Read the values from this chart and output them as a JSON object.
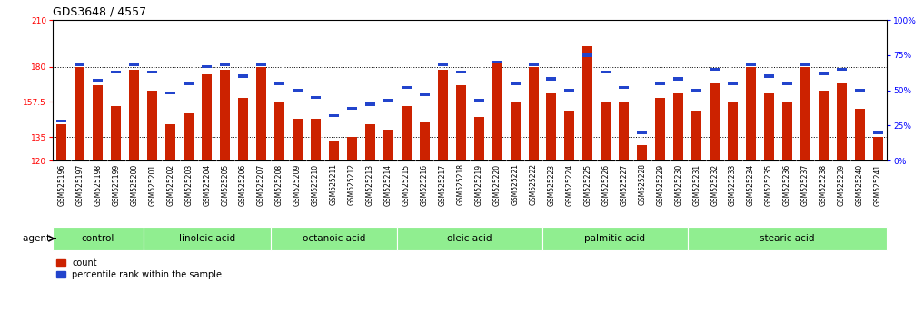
{
  "title": "GDS3648 / 4557",
  "samples": [
    "GSM525196",
    "GSM525197",
    "GSM525198",
    "GSM525199",
    "GSM525200",
    "GSM525201",
    "GSM525202",
    "GSM525203",
    "GSM525204",
    "GSM525205",
    "GSM525206",
    "GSM525207",
    "GSM525208",
    "GSM525209",
    "GSM525210",
    "GSM525211",
    "GSM525212",
    "GSM525213",
    "GSM525214",
    "GSM525215",
    "GSM525216",
    "GSM525217",
    "GSM525218",
    "GSM525219",
    "GSM525220",
    "GSM525221",
    "GSM525222",
    "GSM525223",
    "GSM525224",
    "GSM525225",
    "GSM525226",
    "GSM525227",
    "GSM525228",
    "GSM525229",
    "GSM525230",
    "GSM525231",
    "GSM525232",
    "GSM525233",
    "GSM525234",
    "GSM525235",
    "GSM525236",
    "GSM525237",
    "GSM525238",
    "GSM525239",
    "GSM525240",
    "GSM525241"
  ],
  "red_values": [
    143,
    180,
    168,
    155,
    178,
    165,
    143,
    150,
    175,
    178,
    160,
    180,
    157,
    147,
    147,
    132,
    135,
    143,
    140,
    155,
    145,
    178,
    168,
    148,
    182,
    158,
    180,
    163,
    152,
    193,
    157,
    157,
    130,
    160,
    163,
    152,
    170,
    158,
    180,
    163,
    158,
    180,
    165,
    170,
    153,
    135
  ],
  "blue_percentile": [
    28,
    68,
    57,
    63,
    68,
    63,
    48,
    55,
    67,
    68,
    60,
    68,
    55,
    50,
    45,
    32,
    37,
    40,
    43,
    52,
    47,
    68,
    63,
    43,
    70,
    55,
    68,
    58,
    50,
    75,
    63,
    52,
    20,
    55,
    58,
    50,
    65,
    55,
    68,
    60,
    55,
    68,
    62,
    65,
    50,
    20
  ],
  "groups": [
    {
      "label": "control",
      "start": 0,
      "end": 5
    },
    {
      "label": "linoleic acid",
      "start": 5,
      "end": 12
    },
    {
      "label": "octanoic acid",
      "start": 12,
      "end": 19
    },
    {
      "label": "oleic acid",
      "start": 19,
      "end": 27
    },
    {
      "label": "palmitic acid",
      "start": 27,
      "end": 35
    },
    {
      "label": "stearic acid",
      "start": 35,
      "end": 46
    }
  ],
  "ylim_left": [
    120,
    210
  ],
  "ylim_right": [
    0,
    100
  ],
  "yticks_left": [
    120,
    135,
    157.5,
    180,
    210
  ],
  "yticks_right": [
    0,
    25,
    50,
    75,
    100
  ],
  "ytick_labels_right": [
    "0%",
    "25%",
    "50%",
    "75%",
    "100%"
  ],
  "bar_color": "#CC2200",
  "blue_color": "#2244CC",
  "bg_color": "#FFFFFF",
  "xtick_bg": "#D8D8D8",
  "group_color": "#90EE90",
  "title_fontsize": 9,
  "tick_fontsize": 6.5,
  "xtick_fontsize": 5.5
}
